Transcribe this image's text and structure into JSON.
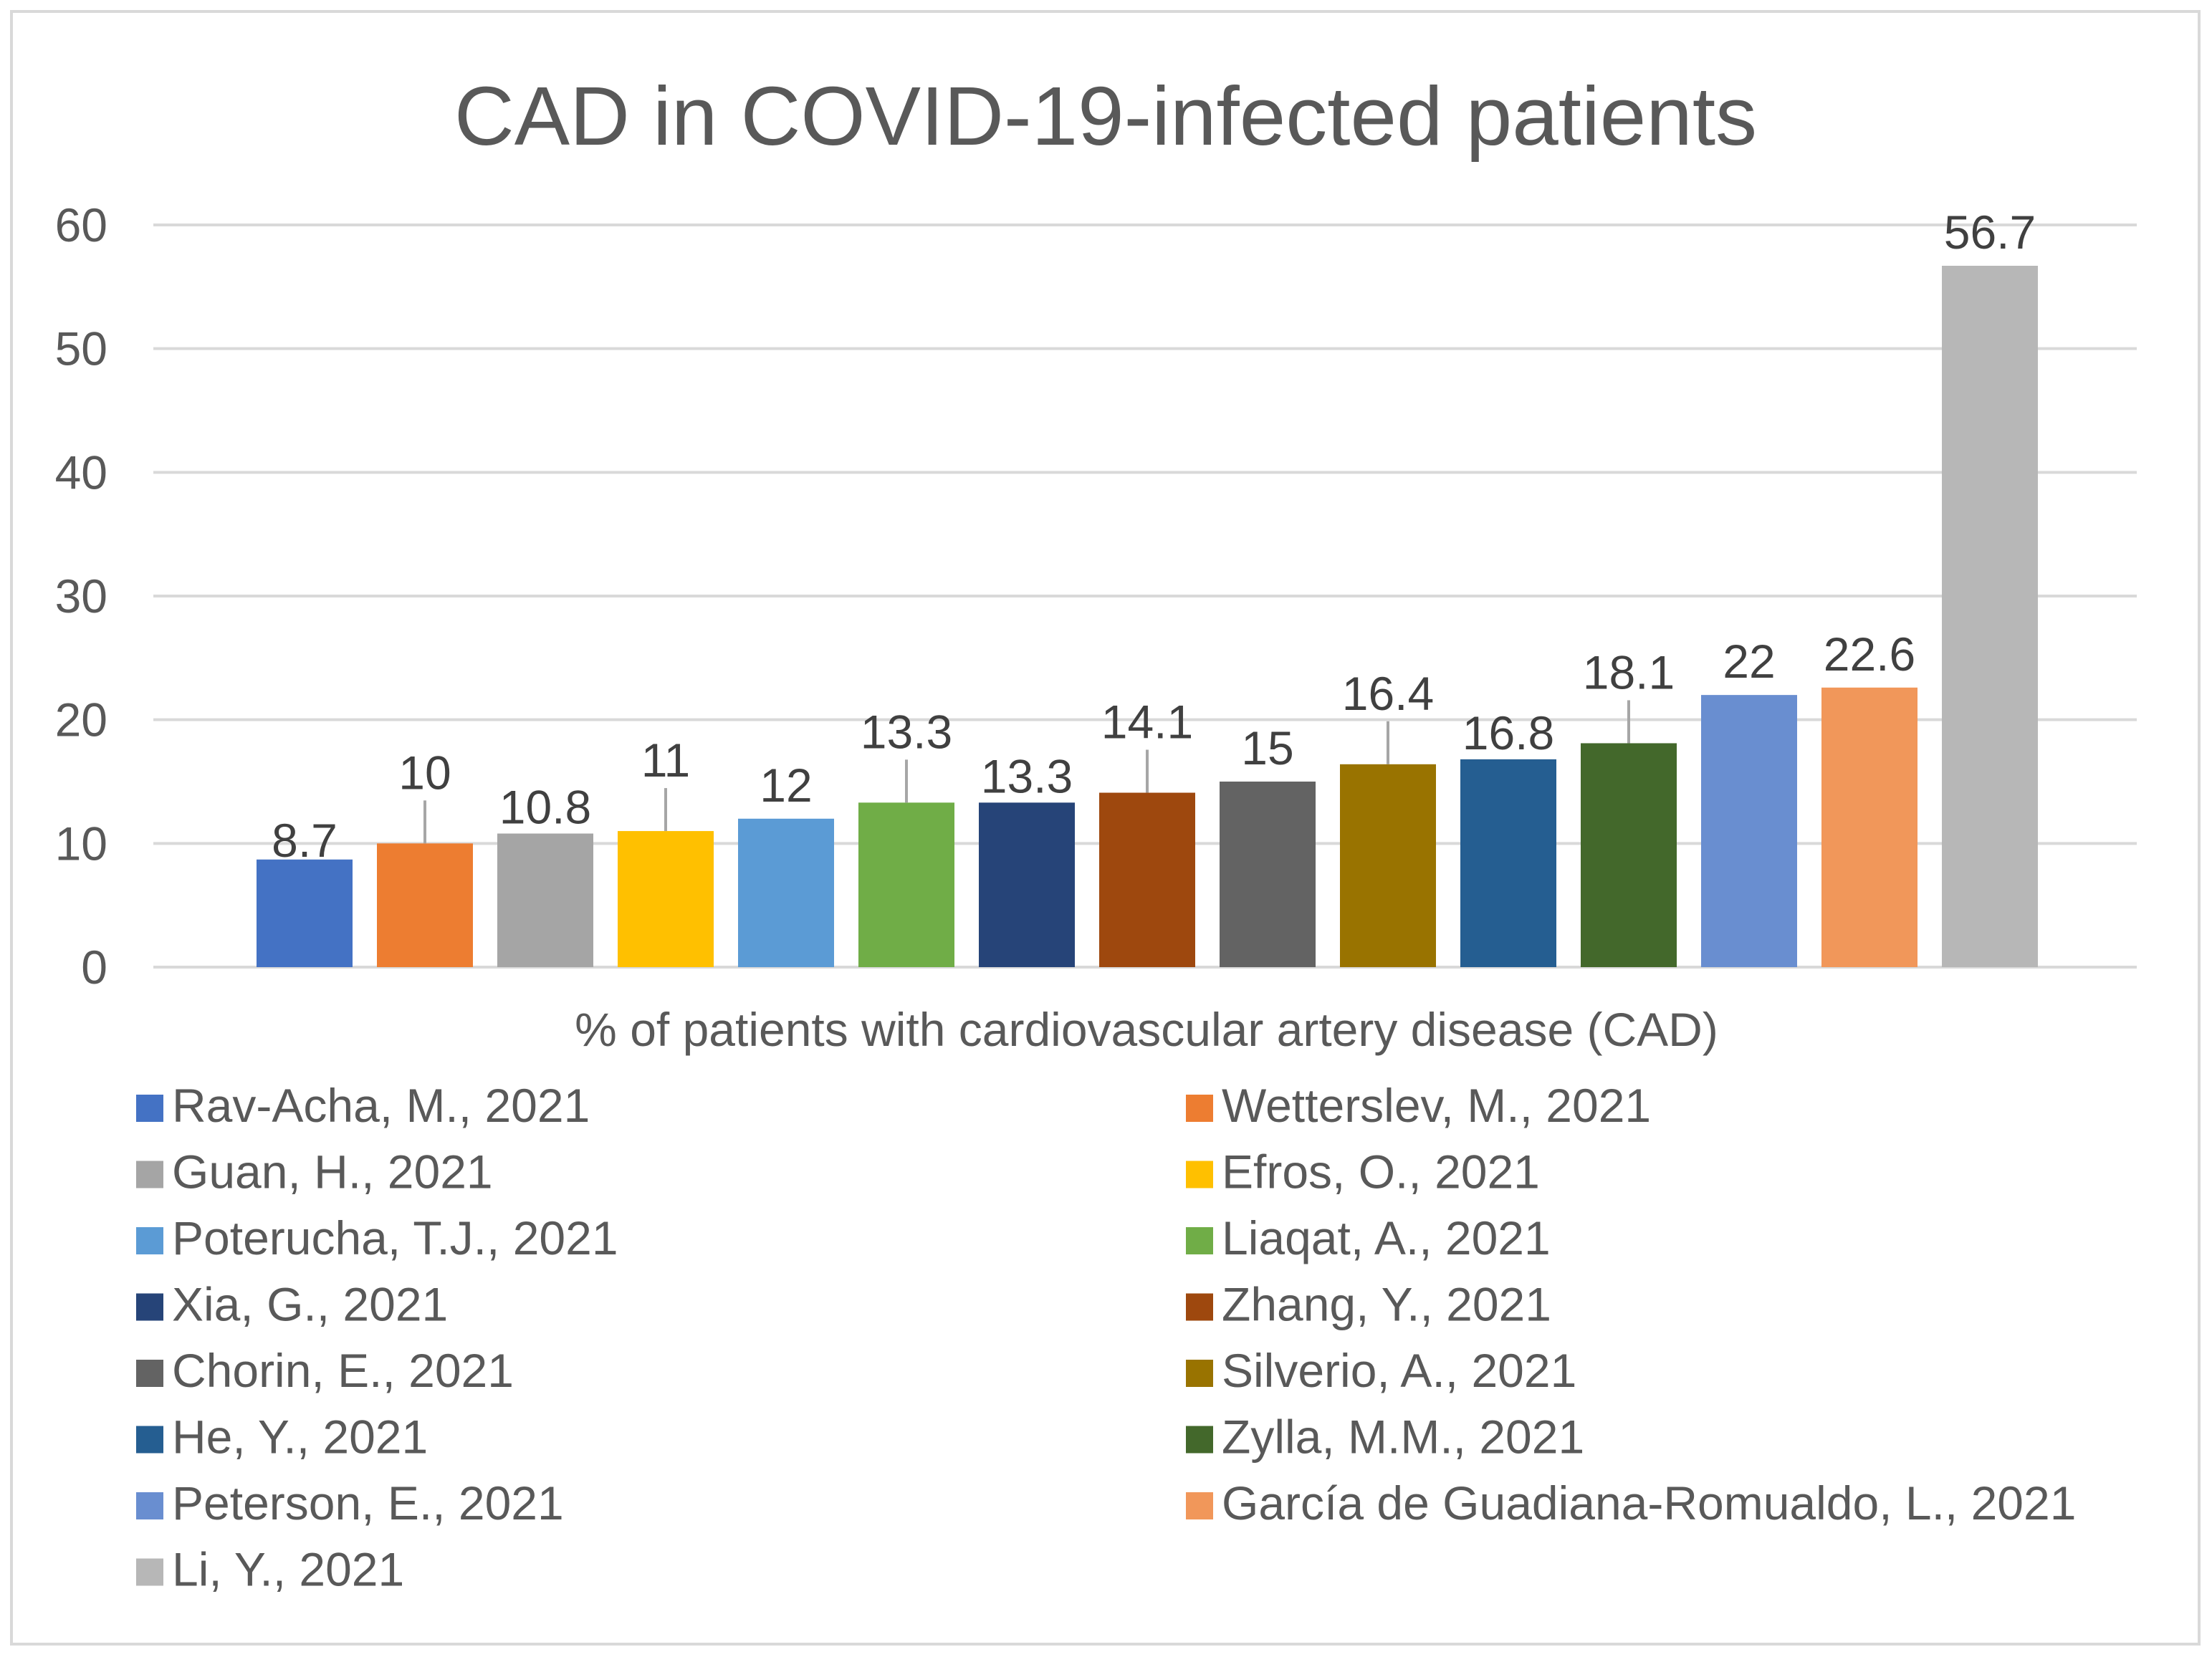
{
  "chart_data": {
    "type": "bar",
    "title": "CAD in COVID-19-infected patients",
    "xlabel": "% of patients with cardiovascular artery disease (CAD)",
    "ylabel": "",
    "ylim": [
      0,
      60
    ],
    "yticks": [
      "0",
      "10",
      "20",
      "30",
      "40",
      "50",
      "60"
    ],
    "grid": true,
    "legend_position": "bottom",
    "series": [
      {
        "name": "Rav-Acha, M., 2021",
        "value": 8.7,
        "label": "8.7",
        "color": "#4472c4"
      },
      {
        "name": "Wetterslev, M., 2021",
        "value": 10,
        "label": "10",
        "color": "#ed7d31"
      },
      {
        "name": "Guan, H., 2021",
        "value": 10.8,
        "label": "10.8",
        "color": "#a5a5a5"
      },
      {
        "name": "Efros, O., 2021",
        "value": 11,
        "label": "11",
        "color": "#ffc000"
      },
      {
        "name": "Poterucha, T.J., 2021",
        "value": 12,
        "label": "12",
        "color": "#5b9bd5"
      },
      {
        "name": "Liaqat, A., 2021",
        "value": 13.3,
        "label": "13.3",
        "color": "#70ad47"
      },
      {
        "name": "Xia, G., 2021",
        "value": 13.3,
        "label": "13.3",
        "color": "#264478"
      },
      {
        "name": "Zhang, Y., 2021",
        "value": 14.1,
        "label": "14.1",
        "color": "#9e480e"
      },
      {
        "name": "Chorin, E., 2021",
        "value": 15,
        "label": "15",
        "color": "#636363"
      },
      {
        "name": "Silverio, A., 2021",
        "value": 16.4,
        "label": "16.4",
        "color": "#997300"
      },
      {
        "name": "He, Y., 2021",
        "value": 16.8,
        "label": "16.8",
        "color": "#255e91"
      },
      {
        "name": "Zylla, M.M., 2021",
        "value": 18.1,
        "label": "18.1",
        "color": "#43682b"
      },
      {
        "name": "Peterson, E., 2021",
        "value": 22,
        "label": "22",
        "color": "#698ed0"
      },
      {
        "name": "García de Guadiana-Romualdo, L., 2021",
        "value": 22.6,
        "label": "22.6",
        "color": "#f1975a"
      },
      {
        "name": "Li, Y., 2021",
        "value": 56.7,
        "label": "56.7",
        "color": "#b7b7b7"
      }
    ]
  }
}
